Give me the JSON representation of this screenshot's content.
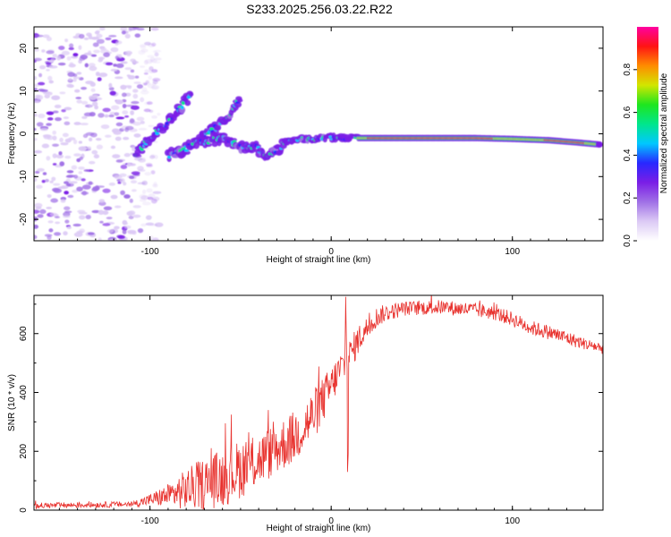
{
  "title": "S233.2025.256.03.22.R22",
  "colors": {
    "snr_line": "#e8322e",
    "axis": "#000000",
    "background": "#ffffff"
  },
  "colormap": [
    "#ffffff",
    "#dccaf5",
    "#a070e6",
    "#7a1ee6",
    "#2828ff",
    "#00c8ff",
    "#00e68c",
    "#1ee61e",
    "#d2e600",
    "#ff8c00",
    "#ff1414",
    "#ff00a0"
  ],
  "chart_data": [
    {
      "type": "heatmap",
      "name": "spectrogram",
      "title": "",
      "xlabel": "Height of straight line (km)",
      "ylabel": "Frequency (Hz)",
      "xlim": [
        -164,
        150
      ],
      "ylim": [
        -25,
        25
      ],
      "xticks": [
        -100,
        0,
        100
      ],
      "yticks": [
        -20,
        -10,
        0,
        10,
        20
      ],
      "noise_region": {
        "x_from": -164,
        "x_to": -105,
        "amplitude": "low, scattered"
      },
      "tracks": [
        {
          "name": "ascending branch",
          "x": [
            -108,
            -100,
            -92,
            -85,
            -80,
            -77
          ],
          "y": [
            -5,
            -1,
            2,
            5,
            8,
            9
          ]
        },
        {
          "name": "secondary branch",
          "x": [
            -90,
            -82,
            -75,
            -68,
            -62,
            -57,
            -50
          ],
          "y": [
            -5,
            -4,
            -2,
            0,
            2,
            4,
            9
          ]
        },
        {
          "name": "middle band",
          "x": [
            -72,
            -60,
            -50,
            -42,
            -35,
            -30,
            -25
          ],
          "y": [
            -2,
            -1,
            -3,
            -3,
            -5,
            -4,
            -2
          ]
        },
        {
          "name": "main carrier",
          "x": [
            -25,
            -10,
            0,
            15,
            40,
            60,
            80,
            100,
            120,
            135,
            148
          ],
          "y": [
            -1.5,
            -1.2,
            -1.0,
            -1.0,
            -1.0,
            -1.0,
            -1.0,
            -1.2,
            -1.5,
            -2.0,
            -2.5
          ]
        }
      ],
      "colorbar": {
        "label": "Normalized spectral amplitude",
        "range": [
          0,
          1
        ],
        "ticks": [
          "0.0",
          "0.2",
          "0.4",
          "0.6",
          "0.8"
        ]
      }
    },
    {
      "type": "line",
      "name": "snr",
      "title": "",
      "xlabel": "Height of straight line (km)",
      "ylabel": "SNR (10 * v/v)",
      "xlim": [
        -164,
        150
      ],
      "ylim": [
        0,
        730
      ],
      "xticks": [
        -100,
        0,
        100
      ],
      "yticks": [
        0,
        200,
        400,
        600
      ],
      "envelope": {
        "x": [
          -164,
          -110,
          -100,
          -90,
          -80,
          -70,
          -60,
          -50,
          -40,
          -30,
          -20,
          -10,
          0,
          5,
          10,
          15,
          20,
          25,
          30,
          40,
          60,
          80,
          90,
          100,
          110,
          120,
          130,
          140,
          150
        ],
        "mean": [
          15,
          20,
          35,
          50,
          70,
          90,
          110,
          140,
          170,
          210,
          250,
          320,
          420,
          480,
          520,
          580,
          620,
          655,
          670,
          685,
          690,
          680,
          670,
          650,
          620,
          605,
          585,
          565,
          550
        ],
        "spread": [
          10,
          10,
          20,
          40,
          70,
          90,
          100,
          100,
          90,
          90,
          90,
          90,
          70,
          60,
          60,
          50,
          40,
          35,
          30,
          25,
          25,
          25,
          25,
          25,
          25,
          25,
          25,
          20,
          20
        ]
      },
      "features": [
        {
          "label": "spike",
          "x": 8,
          "y": 725
        },
        {
          "label": "dip",
          "x": 9,
          "y": 130
        }
      ]
    }
  ]
}
